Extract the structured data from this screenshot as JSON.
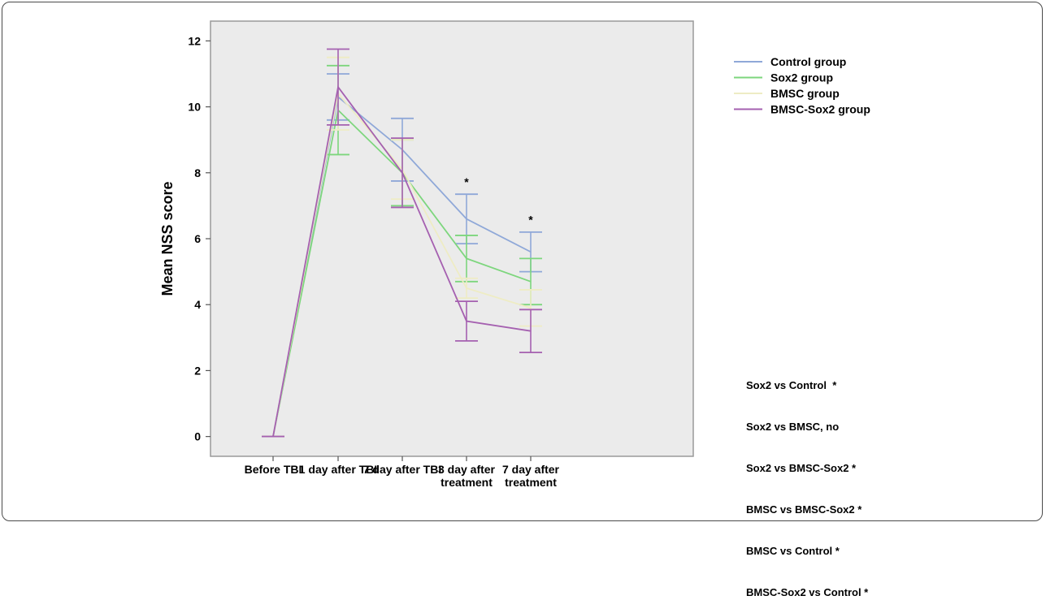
{
  "chart_data": {
    "type": "line",
    "title": "",
    "xlabel": "",
    "ylabel": "Mean NSS score",
    "categories": [
      [
        "Before TBI"
      ],
      [
        "1 day after TBI"
      ],
      [
        "7 day after TBI"
      ],
      [
        "3 day after",
        "treatment"
      ],
      [
        "7 day after",
        "treatment"
      ]
    ],
    "ylim": [
      -0.6,
      12.6
    ],
    "yticks": [
      0,
      2,
      4,
      6,
      8,
      10,
      12
    ],
    "grid": false,
    "legend": "top-right",
    "series": [
      {
        "name": "Control group",
        "color": "#8fa8d8",
        "values": [
          0,
          10.3,
          8.7,
          6.6,
          5.6
        ],
        "lower": [
          0,
          9.6,
          7.75,
          5.85,
          5.0
        ],
        "upper": [
          0,
          11.0,
          9.65,
          7.35,
          6.2
        ]
      },
      {
        "name": "Sox2 group",
        "color": "#7dd67d",
        "values": [
          0,
          9.9,
          8.0,
          5.4,
          4.7
        ],
        "lower": [
          0,
          8.55,
          7.0,
          4.7,
          4.0
        ],
        "upper": [
          0,
          11.25,
          9.0,
          6.1,
          5.4
        ]
      },
      {
        "name": "BMSC group",
        "color": "#eeecc4",
        "values": [
          0,
          10.4,
          8.1,
          4.5,
          3.9
        ],
        "lower": [
          0,
          9.3,
          7.2,
          4.2,
          3.35
        ],
        "upper": [
          0,
          11.5,
          9.0,
          4.8,
          4.45
        ]
      },
      {
        "name": "BMSC-Sox2 group",
        "color": "#a560b0",
        "values": [
          0,
          10.6,
          8.0,
          3.5,
          3.2
        ],
        "lower": [
          0,
          9.45,
          6.95,
          2.9,
          2.55
        ],
        "upper": [
          0,
          11.75,
          9.05,
          4.1,
          3.85
        ]
      }
    ],
    "annotations": [
      {
        "text": "*",
        "category": 3,
        "y": 7.6
      },
      {
        "text": "*",
        "category": 4,
        "y": 6.45
      }
    ]
  },
  "stats": {
    "lines": [
      "Sox2 vs Control  *",
      "Sox2 vs BMSC, no",
      "Sox2 vs BMSC-Sox2 *",
      "BMSC vs BMSC-Sox2 *",
      "BMSC vs Control *",
      "BMSC-Sox2 vs Control *"
    ]
  }
}
